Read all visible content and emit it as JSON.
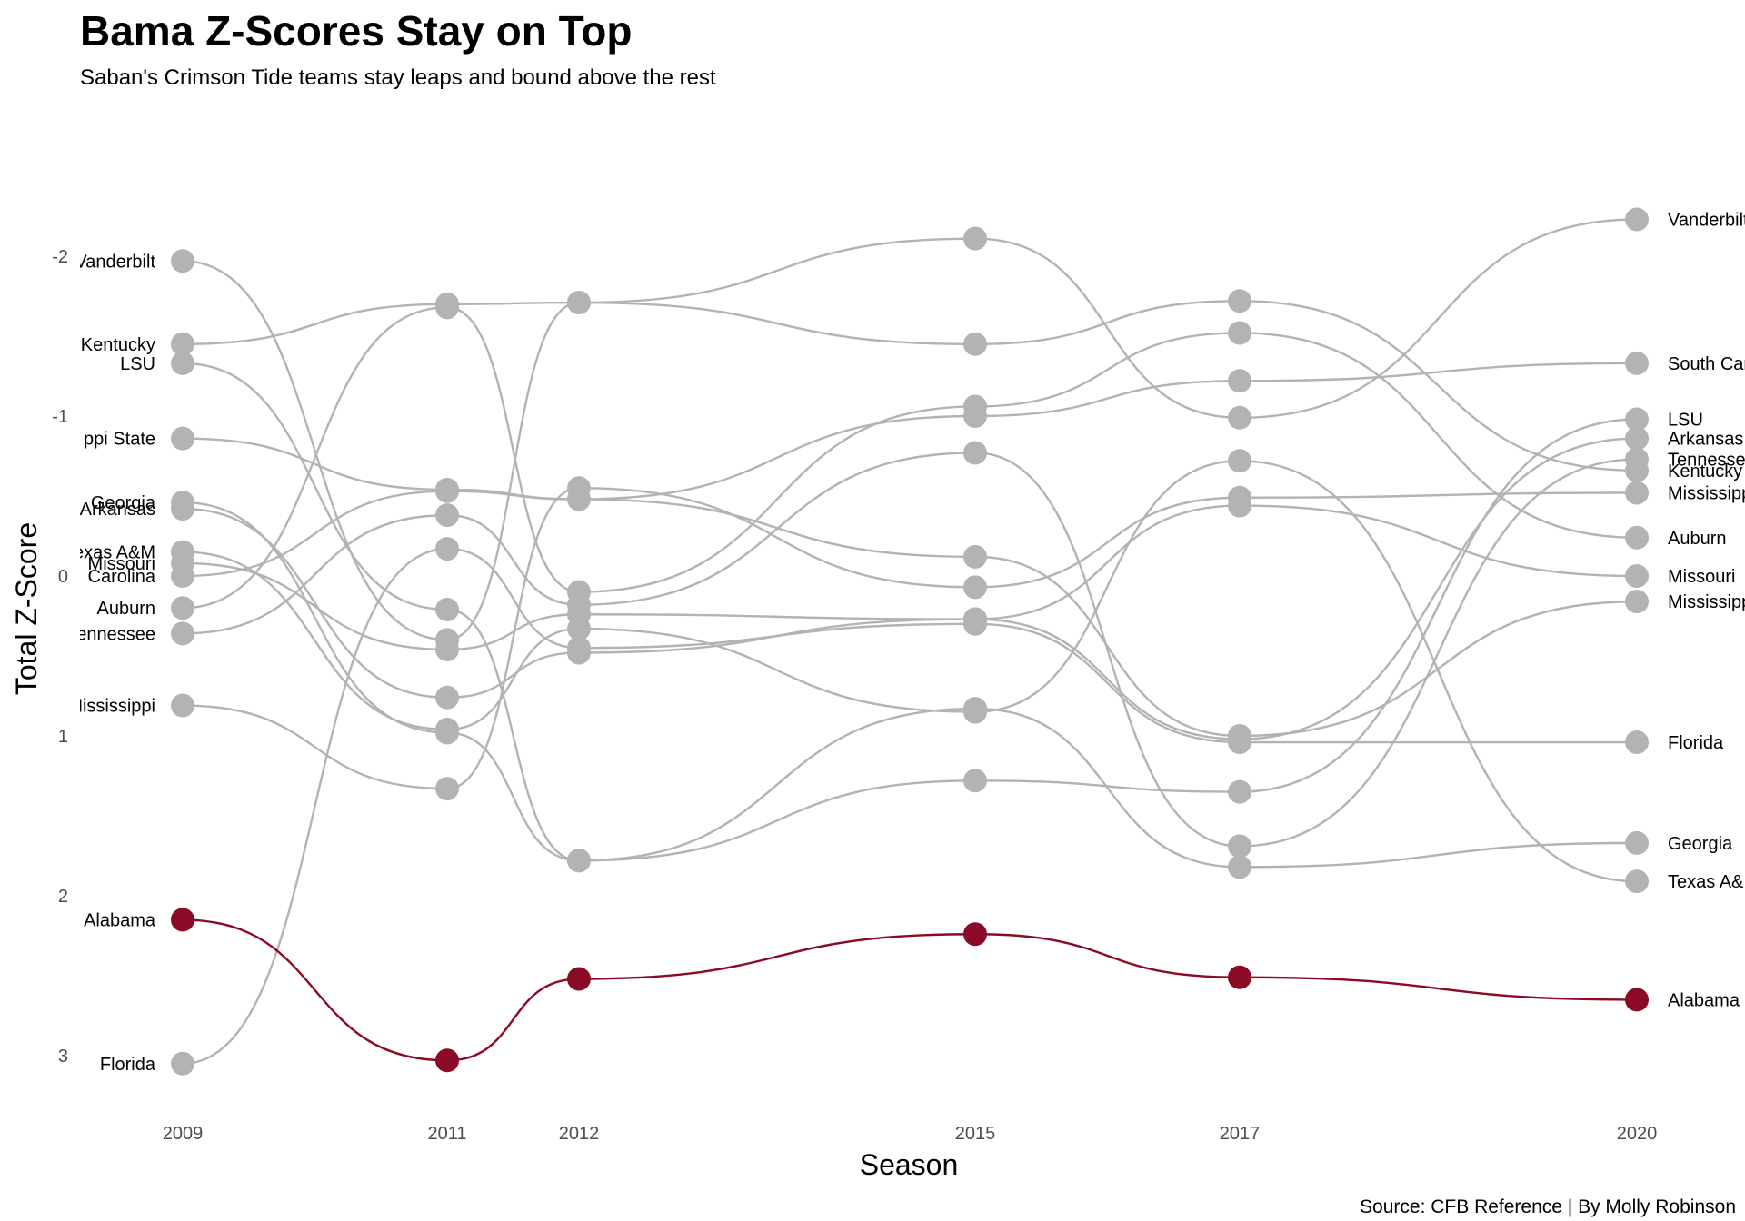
{
  "chart_data": {
    "type": "line",
    "title": "Bama Z-Scores Stay on Top",
    "subtitle": "Saban's Crimson Tide teams stay leaps and bound above the rest",
    "xlabel": "Season",
    "ylabel": "Total Z-Score",
    "caption": "Source: CFB Reference | By Molly Robinson",
    "x": [
      2009,
      2011,
      2012,
      2015,
      2017,
      2020
    ],
    "x_tick_labels": [
      "2009",
      "2011",
      "2012",
      "2015",
      "2017",
      "2020"
    ],
    "y_ticks": [
      -2,
      -1,
      0,
      1,
      2,
      3
    ],
    "y_tick_labels": [
      "-2",
      "-1",
      "0",
      "1",
      "2",
      "3"
    ],
    "ylim": [
      -2.7,
      3.3
    ],
    "y_reversed": true,
    "grid": false,
    "highlight_color": "#8b0a25",
    "default_color": "#b3b3b3",
    "series": [
      {
        "name": "Alabama",
        "highlight": true,
        "label_2009": "Alabama",
        "label_2020": "Alabama",
        "values": [
          2.15,
          3.03,
          2.52,
          2.24,
          2.51,
          2.65
        ]
      },
      {
        "name": "Vanderbilt",
        "highlight": false,
        "label_2009": "Vanderbilt",
        "label_2020": "Vanderbilt",
        "values": [
          -1.97,
          0.4,
          -1.71,
          -2.11,
          -0.99,
          -2.23
        ]
      },
      {
        "name": "Kentucky",
        "highlight": false,
        "label_2009": "Kentucky",
        "label_2020": "Kentucky",
        "values": [
          -1.45,
          -1.7,
          -1.71,
          -1.45,
          -1.72,
          -0.66
        ]
      },
      {
        "name": "LSU",
        "highlight": false,
        "label_2009": "LSU",
        "label_2020": "LSU",
        "values": [
          -1.33,
          0.21,
          1.78,
          1.28,
          1.35,
          -0.98
        ]
      },
      {
        "name": "Mississippi State",
        "highlight": false,
        "label_2009": "ppi State",
        "label_2020": "Mississippi",
        "values": [
          -0.86,
          -0.54,
          -0.48,
          -0.12,
          1.0,
          0.16
        ]
      },
      {
        "name": "Georgia",
        "highlight": false,
        "label_2009": "Georgia",
        "label_2020": "Georgia",
        "values": [
          -0.46,
          0.98,
          1.78,
          0.83,
          1.82,
          1.67
        ]
      },
      {
        "name": "Arkansas",
        "highlight": false,
        "label_2009": "Arkansas",
        "label_2020": "Arkansas",
        "values": [
          -0.42,
          0.76,
          0.48,
          0.27,
          1.02,
          -0.86
        ]
      },
      {
        "name": "Texas A&M",
        "highlight": false,
        "label_2009": "Texas A&M",
        "label_2020": "Texas A&M",
        "values": [
          -0.15,
          0.96,
          0.33,
          0.85,
          -0.72,
          1.91
        ]
      },
      {
        "name": "Missouri",
        "highlight": false,
        "label_2009": "Missouri",
        "label_2020": "Missouri",
        "values": [
          -0.08,
          0.46,
          0.24,
          0.27,
          -0.44,
          0.0
        ]
      },
      {
        "name": "South Carolina",
        "highlight": false,
        "label_2009": "Carolina",
        "label_2020": "South Carolina",
        "values": [
          0.0,
          -0.53,
          -0.48,
          -1.0,
          -1.22,
          -1.33
        ]
      },
      {
        "name": "Auburn",
        "highlight": false,
        "label_2009": "Auburn",
        "label_2020": "Auburn",
        "values": [
          0.2,
          -1.68,
          0.1,
          -1.06,
          -1.52,
          -0.24
        ]
      },
      {
        "name": "Tennessee",
        "highlight": false,
        "label_2009": "Tennessee",
        "label_2020": "Tennessee",
        "values": [
          0.36,
          -0.38,
          0.18,
          -0.77,
          1.69,
          -0.73
        ]
      },
      {
        "name": "Mississippi",
        "highlight": false,
        "label_2009": "Mississippi",
        "label_2020": "Mississippi",
        "values": [
          0.81,
          1.33,
          -0.55,
          0.07,
          -0.49,
          -0.52
        ]
      },
      {
        "name": "Florida",
        "highlight": false,
        "label_2009": "Florida",
        "label_2020": "Florida",
        "values": [
          3.05,
          -0.17,
          0.45,
          0.3,
          1.04,
          1.04
        ]
      }
    ]
  }
}
